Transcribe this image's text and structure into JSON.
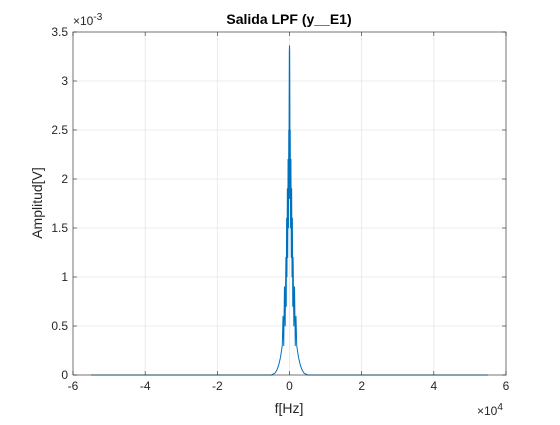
{
  "chart_data": {
    "type": "line",
    "title": "Salida LPF (y__E1)",
    "xlabel": "f[Hz]",
    "ylabel": "Amplitud[V]",
    "xlim": [
      -60000,
      60000
    ],
    "ylim": [
      0,
      0.0035
    ],
    "x_ticks": [
      -60000,
      -40000,
      -20000,
      0,
      20000,
      40000,
      60000
    ],
    "x_tick_labels": [
      "-6",
      "-4",
      "-2",
      "0",
      "2",
      "4",
      "6"
    ],
    "y_ticks": [
      0,
      0.0005,
      0.001,
      0.0015,
      0.002,
      0.0025,
      0.003,
      0.0035
    ],
    "y_tick_labels": [
      "0",
      "0.5",
      "1",
      "1.5",
      "2",
      "2.5",
      "3",
      "3.5"
    ],
    "x_exponent_label": "×10",
    "x_exponent_power": "4",
    "y_exponent_label": "×10",
    "y_exponent_power": "-3",
    "grid": true,
    "series": [
      {
        "color": "#0072bd",
        "x": [
          -55000,
          -5000,
          -4000,
          -3500,
          -3000,
          -2500,
          -2000,
          -1800,
          -1600,
          -1400,
          -1200,
          -1000,
          -900,
          -800,
          -700,
          -600,
          -500,
          -400,
          -300,
          -200,
          -150,
          -100,
          -50,
          0,
          50,
          100,
          150,
          200,
          300,
          400,
          500,
          600,
          700,
          800,
          900,
          1000,
          1200,
          1400,
          1600,
          1800,
          2000,
          2500,
          3000,
          3500,
          4000,
          5000,
          55000
        ],
        "y": [
          0,
          0,
          2e-05,
          5e-05,
          0.0001,
          0.00018,
          0.0003,
          0.0006,
          0.0003,
          0.0009,
          0.0005,
          0.0012,
          0.0007,
          0.0016,
          0.001,
          0.0019,
          0.0012,
          0.0022,
          0.0015,
          0.0025,
          0.0018,
          0.0028,
          0.0033,
          0.00336,
          0.0033,
          0.0028,
          0.0018,
          0.0025,
          0.0015,
          0.0022,
          0.0012,
          0.0019,
          0.001,
          0.0016,
          0.0007,
          0.0012,
          0.0005,
          0.0009,
          0.0003,
          0.0006,
          0.0003,
          0.00018,
          0.0001,
          5e-05,
          2e-05,
          0,
          0
        ]
      }
    ]
  }
}
